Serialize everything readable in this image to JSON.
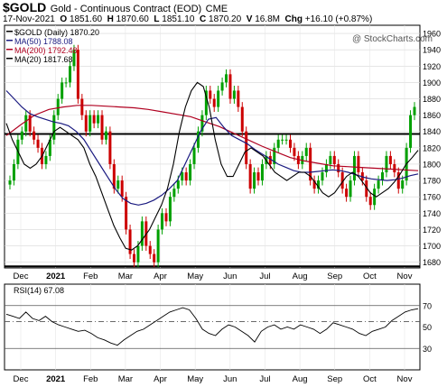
{
  "header": {
    "symbol": "$GOLD",
    "description": "Gold - Continuous Contract (EOD)",
    "exchange": "CME",
    "date": "17-Nov-2021",
    "open_label": "O",
    "open": "1851.60",
    "high_label": "H",
    "high": "1870.60",
    "low_label": "L",
    "low": "1851.10",
    "close_label": "C",
    "close": "1870.20",
    "vol_label": "V",
    "volume": "16.8M",
    "chg_label": "Chg",
    "change": "+16.10 (+0.87%)"
  },
  "watermark": "@ StockCharts.com",
  "chart_data": [
    {
      "type": "candlestick",
      "legend": [
        {
          "label": "$GOLD (Daily) 1870.20",
          "color": "#000000"
        },
        {
          "label": "MA(50) 1788.08",
          "color": "#1a1a80"
        },
        {
          "label": "MA(200) 1792.48",
          "color": "#b00020"
        },
        {
          "label": "MA(20) 1817.68",
          "color": "#000000"
        }
      ],
      "y_ticks": [
        1680,
        1700,
        1720,
        1740,
        1760,
        1780,
        1800,
        1820,
        1840,
        1860,
        1880,
        1900,
        1920,
        1940,
        1960
      ],
      "ylim": [
        1673,
        1970
      ],
      "x_labels": [
        "Dec",
        "2021",
        "Feb",
        "Mar",
        "Apr",
        "May",
        "Jun",
        "Jul",
        "Aug",
        "Sep",
        "Oct",
        "Nov"
      ],
      "horizontal_lines": [
        1837,
        1675
      ],
      "close": [
        1780,
        1800,
        1830,
        1840,
        1860,
        1840,
        1830,
        1820,
        1800,
        1810,
        1830,
        1860,
        1880,
        1900,
        1900,
        1920,
        1940,
        1880,
        1860,
        1840,
        1860,
        1850,
        1860,
        1830,
        1840,
        1800,
        1770,
        1780,
        1760,
        1720,
        1690,
        1680,
        1700,
        1730,
        1700,
        1690,
        1680,
        1720,
        1740,
        1730,
        1760,
        1770,
        1780,
        1790,
        1780,
        1800,
        1820,
        1840,
        1860,
        1890,
        1880,
        1870,
        1890,
        1900,
        1910,
        1880,
        1890,
        1870,
        1840,
        1800,
        1770,
        1790,
        1780,
        1800,
        1810,
        1800,
        1820,
        1830,
        1830,
        1830,
        1820,
        1810,
        1800,
        1810,
        1820,
        1780,
        1770,
        1780,
        1790,
        1800,
        1810,
        1800,
        1790,
        1770,
        1760,
        1780,
        1810,
        1790,
        1780,
        1760,
        1750,
        1770,
        1780,
        1790,
        1810,
        1800,
        1790,
        1770,
        1780,
        1820,
        1860,
        1870
      ],
      "ma20": [
        1850,
        1830,
        1815,
        1800,
        1795,
        1800,
        1810,
        1825,
        1840,
        1845,
        1840,
        1835,
        1830,
        1820,
        1800,
        1785,
        1765,
        1745,
        1725,
        1710,
        1697,
        1695,
        1700,
        1710,
        1720,
        1735,
        1750,
        1770,
        1800,
        1840,
        1870,
        1890,
        1900,
        1895,
        1870,
        1830,
        1800,
        1785,
        1785,
        1800,
        1815,
        1820,
        1815,
        1810,
        1800,
        1790,
        1785,
        1780,
        1785,
        1790,
        1790,
        1785,
        1775,
        1765,
        1760,
        1765,
        1775,
        1785,
        1790,
        1785,
        1775,
        1765,
        1760,
        1765,
        1770,
        1778,
        1788,
        1800,
        1808,
        1817
      ],
      "ma50": [
        1890,
        1880,
        1870,
        1862,
        1858,
        1855,
        1852,
        1850,
        1847,
        1840,
        1830,
        1815,
        1800,
        1785,
        1770,
        1758,
        1752,
        1750,
        1752,
        1756,
        1762,
        1770,
        1780,
        1800,
        1820,
        1840,
        1855,
        1857,
        1845,
        1835,
        1830,
        1825,
        1818,
        1812,
        1806,
        1800,
        1796,
        1792,
        1790,
        1790,
        1791,
        1792,
        1793,
        1792,
        1790,
        1787,
        1784,
        1782,
        1781,
        1780,
        1781,
        1783,
        1786,
        1788
      ],
      "ma200": [
        1835,
        1848,
        1860,
        1867,
        1870,
        1872,
        1872,
        1871,
        1870,
        1869,
        1867,
        1864,
        1861,
        1858,
        1852,
        1846,
        1838,
        1830,
        1822,
        1815,
        1808,
        1804,
        1801,
        1798,
        1797,
        1796,
        1795,
        1794,
        1793,
        1792
      ]
    },
    {
      "type": "line",
      "legend": [
        {
          "label": "RSI(14) 67.08",
          "color": "#000000"
        }
      ],
      "y_ticks": [
        30,
        50,
        70
      ],
      "ylim": [
        10,
        90
      ],
      "x_labels": [
        "Dec",
        "2021",
        "Feb",
        "Mar",
        "Apr",
        "May",
        "Jun",
        "Jul",
        "Aug",
        "Sep",
        "Oct",
        "Nov"
      ],
      "reference_lines": [
        70,
        55,
        30
      ],
      "values": [
        62,
        60,
        58,
        64,
        58,
        56,
        60,
        55,
        52,
        50,
        48,
        46,
        47,
        44,
        40,
        38,
        35,
        33,
        38,
        42,
        46,
        48,
        52,
        56,
        60,
        64,
        66,
        68,
        66,
        58,
        48,
        44,
        42,
        48,
        52,
        50,
        46,
        42,
        36,
        46,
        50,
        52,
        48,
        50,
        48,
        52,
        50,
        48,
        44,
        48,
        54,
        52,
        50,
        48,
        44,
        42,
        46,
        48,
        50,
        56,
        60,
        64,
        66,
        67.08
      ]
    }
  ],
  "colors": {
    "up": "#00a000",
    "down": "#cc0000",
    "ma50": "#1a1a80",
    "ma200": "#b00020",
    "ma20": "#000000",
    "rsi_fill": "#4a8a3a"
  }
}
